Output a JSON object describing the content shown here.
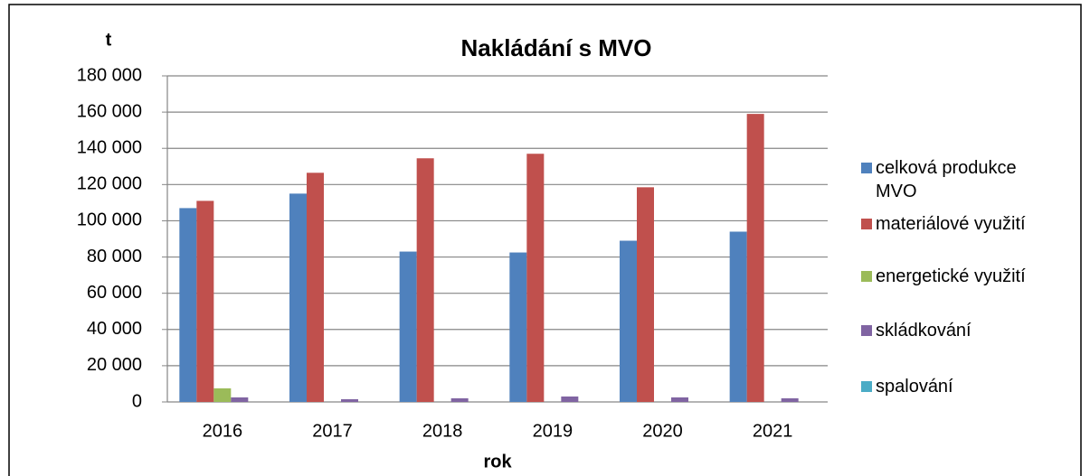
{
  "chart_data": {
    "type": "bar",
    "title": "Nakládání s MVO",
    "y_label": "t",
    "x_label": "rok",
    "categories": [
      "2016",
      "2017",
      "2018",
      "2019",
      "2020",
      "2021"
    ],
    "series": [
      {
        "name": "celková produkce MVO",
        "color": "#4f81bd",
        "values": [
          107000,
          115000,
          83000,
          82500,
          89000,
          94000
        ]
      },
      {
        "name": "materiálové využití",
        "color": "#c0504d",
        "values": [
          111000,
          126500,
          134500,
          137000,
          118500,
          159000
        ]
      },
      {
        "name": "energetické využití",
        "color": "#9bbb59",
        "values": [
          7500,
          0,
          0,
          0,
          0,
          0
        ]
      },
      {
        "name": "skládkování",
        "color": "#8064a2",
        "values": [
          2500,
          1500,
          2000,
          3000,
          2500,
          2000
        ]
      },
      {
        "name": "spalování",
        "color": "#4bacc6",
        "values": [
          0,
          0,
          0,
          0,
          0,
          0
        ]
      }
    ],
    "ylim": [
      0,
      180000
    ],
    "yticks": [
      0,
      {
        "value": 20000,
        "label": "20 000"
      },
      {
        "value": 40000,
        "label": "40 000"
      },
      {
        "value": 60000,
        "label": "60 000"
      },
      {
        "value": 80000,
        "label": "80 000"
      },
      {
        "value": 100000,
        "label": "100 000"
      },
      {
        "value": 120000,
        "label": "120 000"
      },
      {
        "value": 140000,
        "label": "140 000"
      },
      {
        "value": 160000,
        "label": "160 000"
      },
      {
        "value": 180000,
        "label": "180 000"
      }
    ],
    "grid": true,
    "legend": "right"
  }
}
